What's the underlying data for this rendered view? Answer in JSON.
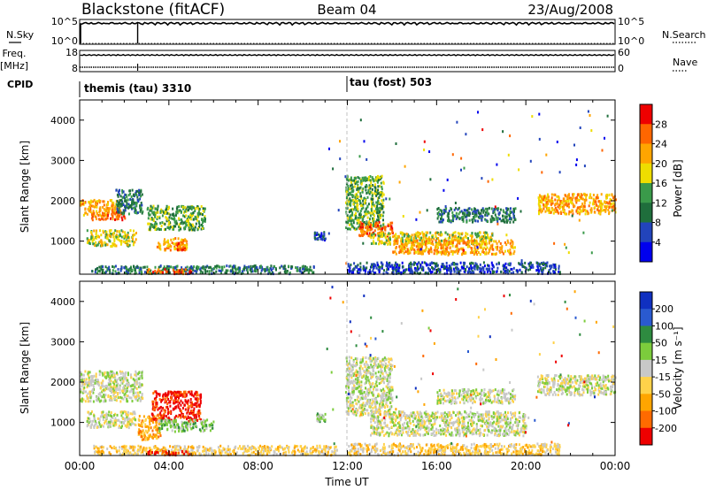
{
  "header": {
    "station": "Blackstone (fitACF)",
    "beam": "Beam 04",
    "date": "23/Aug/2008"
  },
  "left_labels": {
    "nsky": "N.Sky",
    "freq_top": "Freq.",
    "freq_unit": "[MHz]",
    "cpid": "CPID"
  },
  "right_labels": {
    "nsearch": "N.Search",
    "nave": "Nave"
  },
  "cpid_segments": [
    {
      "label": "themis (tau) 3310",
      "start_hour": 0
    },
    {
      "label": "tau (fost) 503",
      "start_hour": 12
    }
  ],
  "chart_data": [
    {
      "type": "line",
      "name": "noise",
      "left_ticks": [
        "10^5",
        "10^0"
      ],
      "right_ticks": [
        "10^5",
        "10^0"
      ],
      "level_fraction": 0.85,
      "dropouts_hour": [
        2.6
      ]
    },
    {
      "type": "line",
      "name": "frequency-nave",
      "left_ticks": [
        "18",
        "8"
      ],
      "right_ticks": [
        "60",
        "0"
      ],
      "level_fraction": 0.22
    },
    {
      "type": "heatmap",
      "name": "power",
      "ylabel": "Slant Range [km]",
      "y_ticks": [
        1000,
        2000,
        3000,
        4000
      ],
      "ylim": [
        180,
        4500
      ],
      "xlim": [
        0,
        24
      ],
      "colorbar": {
        "label": "Power [dB]",
        "ticks": [
          "4",
          "8",
          "12",
          "16",
          "20",
          "24",
          "28"
        ],
        "colors": [
          "#0000ee",
          "#2244bb",
          "#1f6e3c",
          "#3a9a4a",
          "#eedd00",
          "#ffa500",
          "#ff6600",
          "#ee0000"
        ]
      },
      "regions": [
        {
          "t": [
            0.0,
            1.8
          ],
          "r": [
            1650,
            2050
          ],
          "level": 5
        },
        {
          "t": [
            0.5,
            2.0
          ],
          "r": [
            1550,
            1750
          ],
          "level": 6
        },
        {
          "t": [
            1.6,
            2.8
          ],
          "r": [
            1700,
            2300
          ],
          "level": 2
        },
        {
          "t": [
            0.3,
            2.5
          ],
          "r": [
            900,
            1300
          ],
          "level": 4
        },
        {
          "t": [
            3.0,
            5.6
          ],
          "r": [
            1300,
            1900
          ],
          "level": 3
        },
        {
          "t": [
            3.4,
            4.8
          ],
          "r": [
            800,
            1100
          ],
          "level": 5
        },
        {
          "t": [
            4.3,
            4.7
          ],
          "r": [
            800,
            1000
          ],
          "level": 6
        },
        {
          "t": [
            0.5,
            10.5
          ],
          "r": [
            220,
            420
          ],
          "level": 2
        },
        {
          "t": [
            3.0,
            5.0
          ],
          "r": [
            220,
            330
          ],
          "level": 6
        },
        {
          "t": [
            11.9,
            13.6
          ],
          "r": [
            1300,
            2650
          ],
          "level": 3
        },
        {
          "t": [
            12.5,
            14.0
          ],
          "r": [
            1150,
            1500
          ],
          "level": 6
        },
        {
          "t": [
            13.0,
            18.5
          ],
          "r": [
            950,
            1250
          ],
          "level": 4
        },
        {
          "t": [
            14.0,
            19.5
          ],
          "r": [
            700,
            1050
          ],
          "level": 5
        },
        {
          "t": [
            16.0,
            19.5
          ],
          "r": [
            1500,
            1850
          ],
          "level": 2
        },
        {
          "t": [
            20.5,
            24.0
          ],
          "r": [
            1700,
            2200
          ],
          "level": 5
        },
        {
          "t": [
            12.0,
            21.5
          ],
          "r": [
            220,
            500
          ],
          "level": 1
        },
        {
          "t": [
            10.5,
            11.0
          ],
          "r": [
            1050,
            1250
          ],
          "level": 1
        }
      ]
    },
    {
      "type": "heatmap",
      "name": "velocity",
      "ylabel": "Slant Range [km]",
      "xlabel": "Time UT",
      "x_ticks": [
        "00:00",
        "04:00",
        "08:00",
        "12:00",
        "16:00",
        "20:00",
        "00:00"
      ],
      "y_ticks": [
        1000,
        2000,
        3000,
        4000
      ],
      "ylim": [
        180,
        4500
      ],
      "xlim": [
        0,
        24
      ],
      "colorbar": {
        "label": "Velocity [m s⁻¹]",
        "ticks": [
          "200",
          "100",
          "50",
          "15",
          "-15",
          "-50",
          "-100",
          "-200"
        ],
        "colors": [
          "#1030c0",
          "#2a5ad0",
          "#2e8b40",
          "#7ccc3c",
          "#c8c8c8",
          "#ffd24a",
          "#ffa500",
          "#ff6a00",
          "#ee0000"
        ]
      },
      "regions": [
        {
          "t": [
            0.0,
            2.8
          ],
          "r": [
            1550,
            2300
          ],
          "level": 4
        },
        {
          "t": [
            0.3,
            2.5
          ],
          "r": [
            900,
            1300
          ],
          "level": 4
        },
        {
          "t": [
            3.2,
            5.4
          ],
          "r": [
            1050,
            1800
          ],
          "level": 8
        },
        {
          "t": [
            2.6,
            3.6
          ],
          "r": [
            600,
            1200
          ],
          "level": 6
        },
        {
          "t": [
            3.5,
            6.0
          ],
          "r": [
            800,
            1100
          ],
          "level": 3
        },
        {
          "t": [
            0.5,
            11.5
          ],
          "r": [
            220,
            450
          ],
          "level": 5
        },
        {
          "t": [
            3.0,
            5.0
          ],
          "r": [
            220,
            320
          ],
          "level": 8
        },
        {
          "t": [
            11.9,
            14.0
          ],
          "r": [
            1200,
            2650
          ],
          "level": 4
        },
        {
          "t": [
            13.0,
            20.0
          ],
          "r": [
            700,
            1300
          ],
          "level": 4
        },
        {
          "t": [
            16.0,
            19.5
          ],
          "r": [
            1500,
            1850
          ],
          "level": 4
        },
        {
          "t": [
            20.5,
            24.0
          ],
          "r": [
            1700,
            2200
          ],
          "level": 4
        },
        {
          "t": [
            12.0,
            21.5
          ],
          "r": [
            220,
            500
          ],
          "level": 5
        },
        {
          "t": [
            10.6,
            11.0
          ],
          "r": [
            1050,
            1250
          ],
          "level": 3
        }
      ]
    }
  ]
}
